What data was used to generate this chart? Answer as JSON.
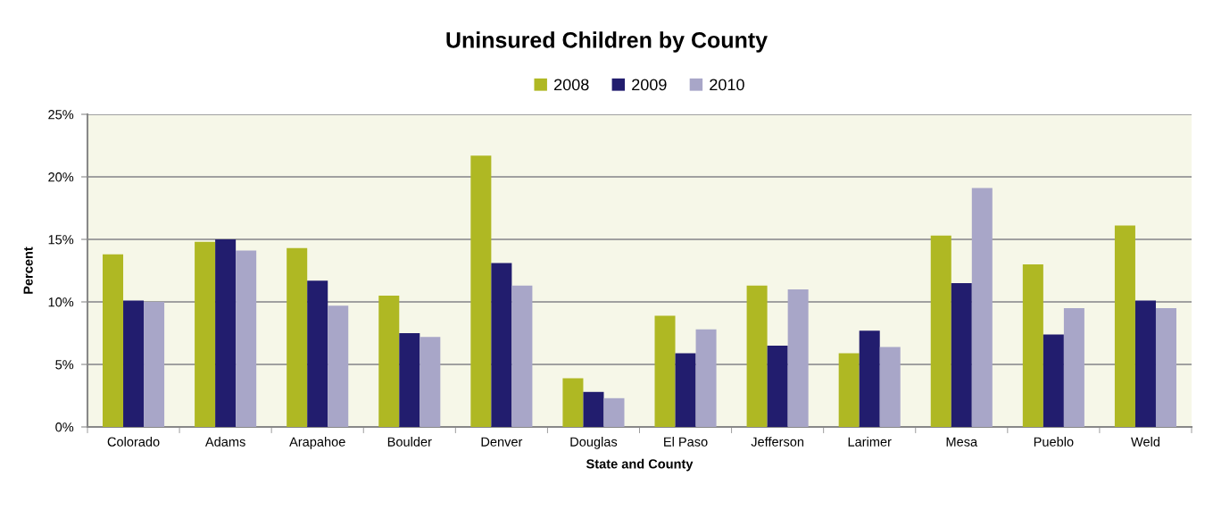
{
  "chart_data": {
    "type": "bar",
    "title": "Uninsured Children by County",
    "xlabel": "State and County",
    "ylabel": "Percent",
    "categories": [
      "Colorado",
      "Adams",
      "Arapahoe",
      "Boulder",
      "Denver",
      "Douglas",
      "El Paso",
      "Jefferson",
      "Larimer",
      "Mesa",
      "Pueblo",
      "Weld"
    ],
    "series": [
      {
        "name": "2008",
        "color": "#afb823",
        "values": [
          13.8,
          14.8,
          14.3,
          10.5,
          21.7,
          3.9,
          8.9,
          11.3,
          5.9,
          15.3,
          13.0,
          16.1
        ]
      },
      {
        "name": "2009",
        "color": "#221d6e",
        "values": [
          10.1,
          15.0,
          11.7,
          7.5,
          13.1,
          2.8,
          5.9,
          6.5,
          7.7,
          11.5,
          7.4,
          10.1
        ]
      },
      {
        "name": "2010",
        "color": "#a8a6c8",
        "values": [
          10.0,
          14.1,
          9.7,
          7.2,
          11.3,
          2.3,
          7.8,
          11.0,
          6.4,
          19.1,
          9.5,
          9.5
        ]
      }
    ],
    "ylim": [
      0,
      25
    ],
    "yticks": [
      {
        "value": 0,
        "label": "0%"
      },
      {
        "value": 5,
        "label": "5%"
      },
      {
        "value": 10,
        "label": "10%"
      },
      {
        "value": 15,
        "label": "15%"
      },
      {
        "value": 20,
        "label": "20%"
      },
      {
        "value": 25,
        "label": "25%"
      }
    ],
    "grid": "y",
    "legend": "top"
  }
}
